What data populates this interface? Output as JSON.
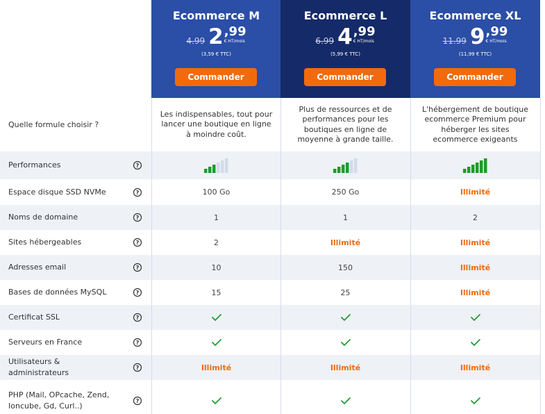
{
  "plans": [
    {
      "name": "Ecommerce M",
      "old_price": "4.99",
      "price_int": "2",
      "price_dec": ",99",
      "price_unit": "€ HT/mois",
      "price_ttc": "(3,59 € TTC)",
      "button": "Commander"
    },
    {
      "name": "Ecommerce L",
      "old_price": "6.99",
      "price_int": "4",
      "price_dec": ",99",
      "price_unit": "€ HT/mois",
      "price_ttc": "(5,99 € TTC)",
      "button": "Commander"
    },
    {
      "name": "Ecommerce XL",
      "old_price": "11.99",
      "price_int": "9",
      "price_dec": ",99",
      "price_unit": "€ HT/mois",
      "price_ttc": "(11,99 € TTC)",
      "button": "Commander"
    }
  ],
  "level_max": 6,
  "rows": [
    {
      "label": "Quelle formule choisir ?",
      "help": false,
      "cells": [
        "Les indispensables, tout pour lancer une boutique en ligne à moindre coût.",
        "Plus de ressources et de performances pour les boutiques en ligne de moyenne à grande taille.",
        "L'hébergement de boutique ecommerce Premium pour héberger les sites ecommerce exigeants"
      ]
    },
    {
      "label": "Performances",
      "help": true,
      "cells": [
        {
          "level": 3
        },
        {
          "level": 4
        },
        {
          "level": 6
        }
      ]
    },
    {
      "label": "Espace disque SSD NVMe",
      "help": true,
      "cells": [
        "100 Go",
        "250 Go",
        {
          "text": "Illimité",
          "emphasis": true
        }
      ]
    },
    {
      "label": "Noms de domaine",
      "help": true,
      "cells": [
        "1",
        "1",
        "2"
      ]
    },
    {
      "label": "Sites hébergeables",
      "help": true,
      "cells": [
        "2",
        {
          "text": "Illimité",
          "emphasis": true
        },
        {
          "text": "Illimité",
          "emphasis": true
        }
      ]
    },
    {
      "label": "Adresses email",
      "help": true,
      "cells": [
        "10",
        "150",
        {
          "text": "Illimité",
          "emphasis": true
        }
      ]
    },
    {
      "label": "Bases de données MySQL",
      "help": true,
      "cells": [
        "15",
        "25",
        {
          "text": "Illimité",
          "emphasis": true
        }
      ]
    },
    {
      "label": "Certificat SSL",
      "help": true,
      "cells": [
        true,
        true,
        true
      ]
    },
    {
      "label": "Serveurs en France",
      "help": true,
      "cells": [
        true,
        true,
        true
      ]
    },
    {
      "label": "Utilisateurs & administrateurs",
      "help": true,
      "cells": [
        {
          "text": "Illimité",
          "emphasis": true
        },
        {
          "text": "Illimité",
          "emphasis": true
        },
        {
          "text": "Illimité",
          "emphasis": true
        }
      ]
    },
    {
      "label": "PHP (Mail, OPcache, Zend, Ioncube, Gd, Curl..)",
      "help": true,
      "cells": [
        true,
        true,
        true
      ]
    }
  ]
}
